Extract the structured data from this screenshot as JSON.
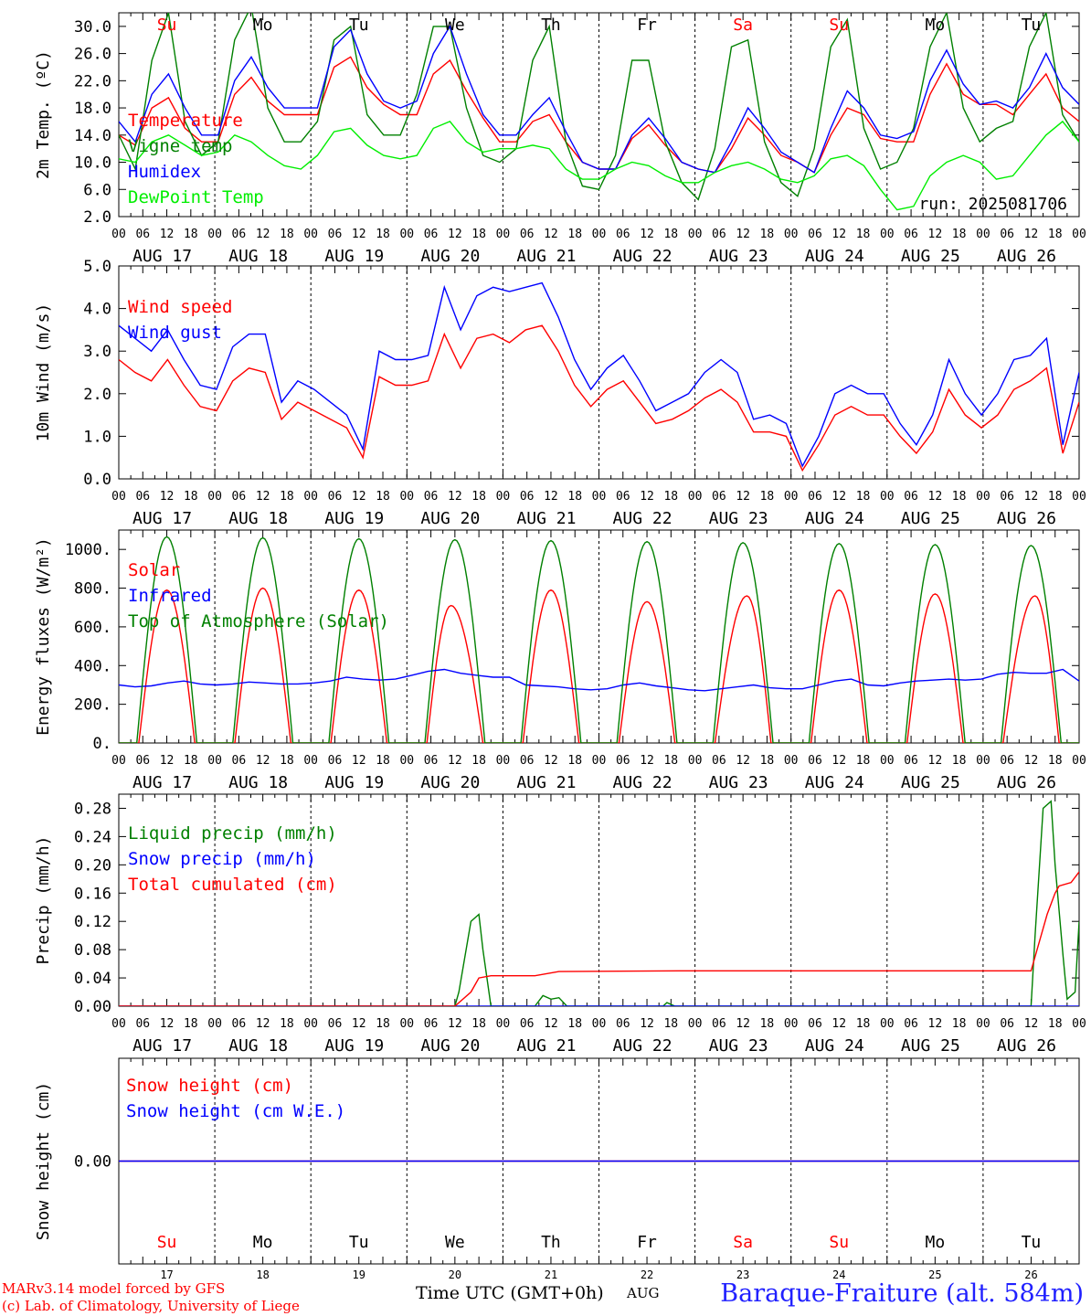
{
  "footer": {
    "model_line": "MARv3.14 model forced by GFS",
    "credit_line": "(c) Lab. of Climatology, University of Liege",
    "xaxis_title": "Time UTC (GMT+0h)",
    "xaxis_month": "AUG",
    "station": "Baraque-Fraiture (alt. 584m)"
  },
  "colors": {
    "red": "#ff0000",
    "green": "#008000",
    "blue": "#0000ff",
    "light_green": "#00ee00",
    "sunday_red": "#ff0000"
  },
  "shared_axis": {
    "hours": [
      "00",
      "06",
      "12",
      "18"
    ],
    "final_tick": "00",
    "dates": [
      "AUG 17",
      "AUG 18",
      "AUG 19",
      "AUG 20",
      "AUG 21",
      "AUG 22",
      "AUG 23",
      "AUG 24",
      "AUG 25",
      "AUG 26"
    ],
    "weekdays": [
      "Su",
      "Mo",
      "Tu",
      "We",
      "Th",
      "Fr",
      "Sa",
      "Su",
      "Mo",
      "Tu"
    ],
    "weekday_red": [
      true,
      false,
      false,
      false,
      false,
      false,
      true,
      true,
      false,
      false
    ],
    "day_numbers": [
      "17",
      "18",
      "19",
      "20",
      "21",
      "22",
      "23",
      "24",
      "25",
      "26"
    ]
  },
  "chart_data": [
    {
      "type": "line",
      "ylabel": "2m Temp. (ºC)",
      "ylim": [
        2,
        32
      ],
      "yticks": [
        "2.0",
        "6.0",
        "10.0",
        "14.0",
        "18.0",
        "22.0",
        "26.0",
        "30.0"
      ],
      "annotation": "run: 2025081706",
      "x": "hours since AUG 17 00 UTC, 0 to 240 step 6",
      "series": [
        {
          "name": "Temperature",
          "color": "#ff0000",
          "values": [
            14,
            12.5,
            18,
            19.5,
            15,
            13,
            13,
            20,
            22.5,
            19,
            17,
            17,
            17,
            24,
            25.5,
            21,
            18.5,
            17,
            17,
            23,
            25,
            20.5,
            16.5,
            13,
            13,
            16,
            17,
            13,
            10,
            9,
            9,
            13.5,
            15.5,
            12.5,
            10,
            9,
            8.5,
            12,
            16.5,
            14,
            11,
            10,
            8.5,
            14,
            18,
            17,
            13.5,
            13,
            13,
            20,
            24.5,
            20,
            18.5,
            18.5,
            17,
            20,
            23,
            18,
            16
          ]
        },
        {
          "name": "Vigne temp",
          "color": "#008000",
          "values": [
            14,
            9,
            25,
            32,
            16,
            11,
            13,
            28,
            33,
            18,
            13,
            13,
            16,
            28,
            30,
            17,
            14,
            14,
            20,
            30,
            30,
            18,
            11,
            10,
            12,
            25,
            30,
            13,
            6.5,
            6,
            11,
            25,
            25,
            13,
            7,
            4.5,
            12,
            27,
            28,
            13,
            7,
            5,
            12,
            27,
            31,
            15,
            9,
            10,
            15,
            27,
            32,
            18,
            13,
            15,
            16,
            27,
            32,
            17,
            13
          ]
        },
        {
          "name": "Humidex",
          "color": "#0000ff",
          "values": [
            16,
            13,
            20,
            23,
            18,
            14,
            14,
            22,
            25.5,
            21,
            18,
            18,
            18,
            27,
            29.5,
            23,
            19,
            18,
            19,
            26,
            30,
            23,
            17,
            14,
            14,
            17,
            19.5,
            14.5,
            10,
            9,
            9,
            14,
            16.5,
            13.5,
            10,
            9,
            8.5,
            13,
            18,
            15,
            11.5,
            10,
            8.5,
            15,
            20.5,
            18,
            14,
            13.5,
            14.5,
            22,
            26.5,
            21.5,
            18.5,
            19,
            18,
            21,
            26,
            21,
            18.5
          ]
        },
        {
          "name": "DewPoint Temp",
          "color": "#00ee00",
          "values": [
            10.5,
            10,
            13,
            14,
            12.5,
            11,
            11.5,
            14,
            13,
            11,
            9.5,
            9,
            11,
            14.5,
            15,
            12.5,
            11,
            10.5,
            11,
            15,
            16,
            13,
            11.5,
            12,
            12,
            12.5,
            12,
            9,
            7.5,
            7.5,
            9,
            10,
            9.5,
            8,
            7,
            7,
            8.5,
            9.5,
            10,
            9,
            7.5,
            7,
            8,
            10.5,
            11,
            9.5,
            6,
            3,
            3.5,
            8,
            10,
            11,
            10,
            7.5,
            8,
            11,
            14,
            16,
            13
          ]
        }
      ]
    },
    {
      "type": "line",
      "ylabel": "10m Wind (m/s)",
      "ylim": [
        0,
        5
      ],
      "yticks": [
        "0.0",
        "1.0",
        "2.0",
        "3.0",
        "4.0",
        "5.0"
      ],
      "x": "hours since AUG 17 00 UTC, 0 to 240 step 6",
      "series": [
        {
          "name": "Wind speed",
          "color": "#ff0000",
          "values": [
            2.8,
            2.5,
            2.3,
            2.8,
            2.2,
            1.7,
            1.6,
            2.3,
            2.6,
            2.5,
            1.4,
            1.8,
            1.6,
            1.4,
            1.2,
            0.5,
            2.4,
            2.2,
            2.2,
            2.3,
            3.4,
            2.6,
            3.3,
            3.4,
            3.2,
            3.5,
            3.6,
            3.0,
            2.2,
            1.7,
            2.1,
            2.3,
            1.8,
            1.3,
            1.4,
            1.6,
            1.9,
            2.1,
            1.8,
            1.1,
            1.1,
            1.0,
            0.2,
            0.8,
            1.5,
            1.7,
            1.5,
            1.5,
            1.0,
            0.6,
            1.1,
            2.1,
            1.5,
            1.2,
            1.5,
            2.1,
            2.3,
            2.6,
            0.6,
            1.8
          ]
        },
        {
          "name": "Wind gust",
          "color": "#0000ff",
          "values": [
            3.6,
            3.3,
            3.0,
            3.5,
            2.8,
            2.2,
            2.1,
            3.1,
            3.4,
            3.4,
            1.8,
            2.3,
            2.1,
            1.8,
            1.5,
            0.7,
            3.0,
            2.8,
            2.8,
            2.9,
            4.5,
            3.5,
            4.3,
            4.5,
            4.4,
            4.5,
            4.6,
            3.8,
            2.8,
            2.1,
            2.6,
            2.9,
            2.3,
            1.6,
            1.8,
            2.0,
            2.5,
            2.8,
            2.5,
            1.4,
            1.5,
            1.3,
            0.3,
            1.0,
            2.0,
            2.2,
            2.0,
            2.0,
            1.3,
            0.8,
            1.5,
            2.8,
            2.0,
            1.5,
            2.0,
            2.8,
            2.9,
            3.3,
            0.8,
            2.5
          ]
        }
      ]
    },
    {
      "type": "line",
      "ylabel": "Energy fluxes (W/m²)",
      "ylim": [
        0,
        1100
      ],
      "yticks": [
        "0.",
        "200.",
        "400.",
        "600.",
        "800.",
        "1000."
      ],
      "x": "hours since AUG 17 00 UTC, 0 to 240 step 6",
      "series": [
        {
          "name": "Solar",
          "color": "#ff0000",
          "days": [
            {
              "peak_hour": 12,
              "peak": 790
            },
            {
              "peak_hour": 12,
              "peak": 800
            },
            {
              "peak_hour": 12,
              "peak": 790
            },
            {
              "peak_hour": 11,
              "peak": 710
            },
            {
              "peak_hour": 12,
              "peak": 790
            },
            {
              "peak_hour": 12,
              "peak": 730
            },
            {
              "peak_hour": 13,
              "peak": 760
            },
            {
              "peak_hour": 12,
              "peak": 790
            },
            {
              "peak_hour": 12,
              "peak": 770
            },
            {
              "peak_hour": 13,
              "peak": 760
            }
          ],
          "sunrise_hour": 5,
          "sunset_hour": 19
        },
        {
          "name": "Infrared",
          "color": "#0000ff",
          "values": [
            300,
            290,
            295,
            310,
            320,
            305,
            300,
            305,
            315,
            310,
            305,
            305,
            310,
            320,
            340,
            330,
            325,
            330,
            350,
            370,
            380,
            360,
            350,
            340,
            340,
            300,
            295,
            290,
            280,
            275,
            280,
            300,
            310,
            295,
            285,
            275,
            270,
            280,
            290,
            300,
            285,
            280,
            280,
            300,
            320,
            330,
            300,
            295,
            310,
            320,
            325,
            330,
            325,
            330,
            355,
            365,
            360,
            360,
            380,
            320
          ]
        },
        {
          "name": "Top of Atmosphere (Solar)",
          "color": "#008000",
          "days": [
            {
              "peak_hour": 12,
              "peak": 1065
            },
            {
              "peak_hour": 12,
              "peak": 1060
            },
            {
              "peak_hour": 12,
              "peak": 1055
            },
            {
              "peak_hour": 12,
              "peak": 1050
            },
            {
              "peak_hour": 12,
              "peak": 1045
            },
            {
              "peak_hour": 12,
              "peak": 1040
            },
            {
              "peak_hour": 12,
              "peak": 1035
            },
            {
              "peak_hour": 12,
              "peak": 1030
            },
            {
              "peak_hour": 12,
              "peak": 1025
            },
            {
              "peak_hour": 12,
              "peak": 1020
            }
          ],
          "sunrise_hour": 4.5,
          "sunset_hour": 19.5
        }
      ]
    },
    {
      "type": "line",
      "ylabel": "Precip (mm/h)",
      "ylim": [
        0,
        0.3
      ],
      "yticks": [
        "0.00",
        "0.04",
        "0.08",
        "0.12",
        "0.16",
        "0.20",
        "0.24",
        "0.28"
      ],
      "x": "hours since AUG 17 00 UTC",
      "series": [
        {
          "name": "Liquid precip (mm/h)",
          "color": "#008000",
          "points": [
            [
              0,
              0
            ],
            [
              84,
              0
            ],
            [
              85,
              0.02
            ],
            [
              88,
              0.12
            ],
            [
              90,
              0.13
            ],
            [
              91,
              0.08
            ],
            [
              93,
              0
            ],
            [
              104,
              0
            ],
            [
              106,
              0.015
            ],
            [
              108,
              0.01
            ],
            [
              110,
              0.012
            ],
            [
              112,
              0
            ],
            [
              136,
              0
            ],
            [
              137,
              0.005
            ],
            [
              139,
              0
            ],
            [
              228,
              0
            ],
            [
              229,
              0.1
            ],
            [
              231,
              0.28
            ],
            [
              233,
              0.29
            ],
            [
              234,
              0.2
            ],
            [
              236,
              0.07
            ],
            [
              237,
              0.01
            ],
            [
              239,
              0.02
            ],
            [
              240,
              0.12
            ]
          ]
        },
        {
          "name": "Snow precip (mm/h)",
          "color": "#0000ff",
          "points": [
            [
              0,
              0
            ],
            [
              240,
              0
            ]
          ]
        },
        {
          "name": "Total cumulated (cm)",
          "color": "#ff0000",
          "points": [
            [
              0,
              0
            ],
            [
              84,
              0
            ],
            [
              88,
              0.02
            ],
            [
              90,
              0.04
            ],
            [
              93,
              0.043
            ],
            [
              104,
              0.043
            ],
            [
              110,
              0.049
            ],
            [
              140,
              0.05
            ],
            [
              228,
              0.05
            ],
            [
              232,
              0.13
            ],
            [
              234,
              0.16
            ],
            [
              235,
              0.17
            ],
            [
              238,
              0.175
            ],
            [
              240,
              0.19
            ]
          ]
        }
      ]
    },
    {
      "type": "line",
      "ylabel": "Snow height (cm)",
      "yticks": [
        "0.00"
      ],
      "x": "hours since AUG 17 00 UTC",
      "series": [
        {
          "name": "Snow height (cm)",
          "color": "#ff0000",
          "points": [
            [
              0,
              0
            ],
            [
              240,
              0
            ]
          ]
        },
        {
          "name": "Snow height (cm W.E.)",
          "color": "#0000ff",
          "points": [
            [
              0,
              0
            ],
            [
              240,
              0
            ]
          ]
        }
      ]
    }
  ]
}
